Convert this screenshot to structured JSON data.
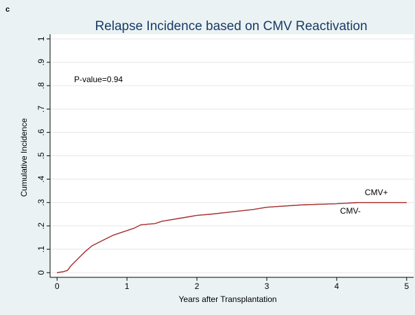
{
  "chart_data": {
    "type": "line",
    "panel_label": "c",
    "title": "Relapse Incidence based on CMV Reactivation",
    "x_label": "Years after Transplantation",
    "y_label": "Cumulative Incidence",
    "annotation": "P-value=0.94",
    "x": [
      0,
      0.1,
      0.15,
      0.2,
      0.3,
      0.4,
      0.5,
      0.6,
      0.7,
      0.8,
      0.9,
      1.0,
      1.1,
      1.2,
      1.4,
      1.5,
      1.7,
      1.9,
      2.0,
      2.2,
      2.5,
      2.8,
      3.0,
      3.5,
      4.0,
      4.3,
      5.0
    ],
    "series": [
      {
        "name": "CMV-",
        "color": "#1f3f7a",
        "values": [
          0,
          0.005,
          0.01,
          0.03,
          0.06,
          0.09,
          0.115,
          0.13,
          0.145,
          0.16,
          0.17,
          0.18,
          0.19,
          0.205,
          0.21,
          0.22,
          0.23,
          0.24,
          0.245,
          0.25,
          0.26,
          0.27,
          0.28,
          0.29,
          0.295,
          0.3,
          0.3
        ]
      },
      {
        "name": "CMV+",
        "color": "#b5302a",
        "values": [
          0,
          0.005,
          0.01,
          0.03,
          0.06,
          0.09,
          0.115,
          0.13,
          0.145,
          0.16,
          0.17,
          0.18,
          0.19,
          0.205,
          0.21,
          0.22,
          0.23,
          0.24,
          0.245,
          0.25,
          0.26,
          0.27,
          0.28,
          0.29,
          0.295,
          0.3,
          0.3
        ]
      }
    ],
    "xlim": [
      -0.1,
      5.1
    ],
    "xticks": [
      0,
      1,
      2,
      3,
      4,
      5
    ],
    "ylim": [
      -0.02,
      1.02
    ],
    "yticks": [
      0,
      {
        "value": 0.1,
        "label": ".1"
      },
      {
        "value": 0.2,
        "label": ".2"
      },
      {
        "value": 0.3,
        "label": ".3"
      },
      {
        "value": 0.4,
        "label": ".4"
      },
      {
        "value": 0.5,
        "label": ".5"
      },
      {
        "value": 0.6,
        "label": ".6"
      },
      {
        "value": 0.7,
        "label": ".7"
      },
      {
        "value": 0.8,
        "label": ".8"
      },
      {
        "value": 0.9,
        "label": ".9"
      },
      1
    ],
    "grid": true
  }
}
